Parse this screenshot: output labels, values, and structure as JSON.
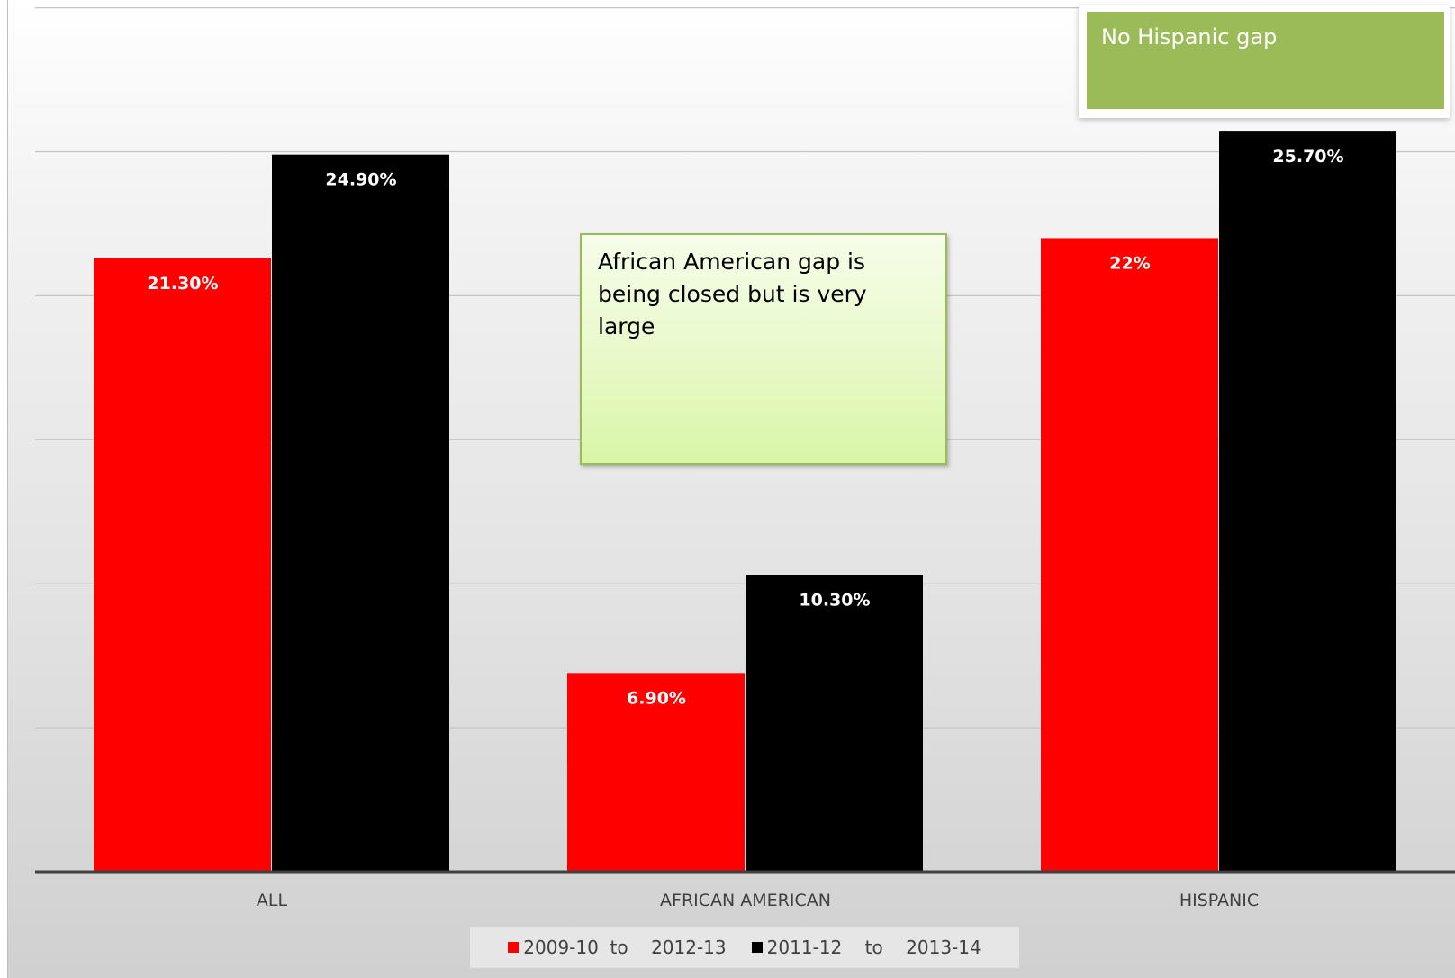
{
  "chart_data": {
    "type": "bar",
    "categories": [
      "ALL",
      "AFRICAN AMERICAN",
      "HISPANIC"
    ],
    "series": [
      {
        "name": "2009-10  to    2012-13",
        "color": "#ff0000",
        "values": [
          21.3,
          6.9,
          22.0
        ],
        "labels": [
          "21.30%",
          "6.90%",
          "22%"
        ]
      },
      {
        "name": "2011-12    to    2013-14",
        "color": "#000000",
        "values": [
          24.9,
          10.3,
          25.7
        ],
        "labels": [
          "24.90%",
          "10.30%",
          "25.70%"
        ]
      }
    ],
    "ylim": [
      0,
      30
    ],
    "gridlines": [
      5,
      10,
      15,
      20,
      25,
      30
    ],
    "grid": true,
    "legend_position": "bottom",
    "annotations": [
      {
        "text": "No Hispanic gap",
        "color": "#9bbb59"
      },
      {
        "text": "African American gap is being closed but is very large",
        "color": "#e8f9c9"
      }
    ]
  }
}
